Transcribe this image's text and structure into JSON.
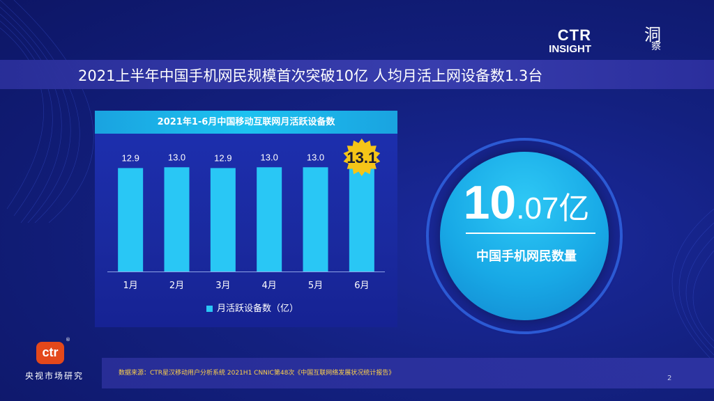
{
  "page": {
    "title": "2021上半年中国手机网民规模首次突破10亿 人均月活上网设备数1.3台",
    "page_number": "2"
  },
  "brand": {
    "ctr": "CTR",
    "insight": "INSIGHT",
    "glyph_1": "洞",
    "glyph_2": "察"
  },
  "chart_data": {
    "type": "bar",
    "title": "2021年1-6月中国移动互联网月活跃设备数",
    "categories": [
      "1月",
      "2月",
      "3月",
      "4月",
      "5月",
      "6月"
    ],
    "series": [
      {
        "name": "月活跃设备数（亿）",
        "values": [
          12.9,
          13.0,
          12.9,
          13.0,
          13.0,
          13.1
        ],
        "labels": [
          "12.9",
          "13.0",
          "12.9",
          "13.0",
          "13.0",
          "13.1"
        ]
      }
    ],
    "highlight_index": 5,
    "colors": {
      "bar": "#29c7f5",
      "highlight_badge": "#f5c518",
      "axis": "#8fa3e8"
    }
  },
  "stat": {
    "integer": "10",
    "decimal": ".07",
    "unit": "亿",
    "label": "中国手机网民数量"
  },
  "footer": {
    "source": "数据来源：CTR星汉移动用户分析系统 2021H1      CNNIC第48次《中国互联网络发展状况统计报告》"
  },
  "logo": {
    "mark": "ctr",
    "registered": "®",
    "name": "央视市场研究"
  }
}
